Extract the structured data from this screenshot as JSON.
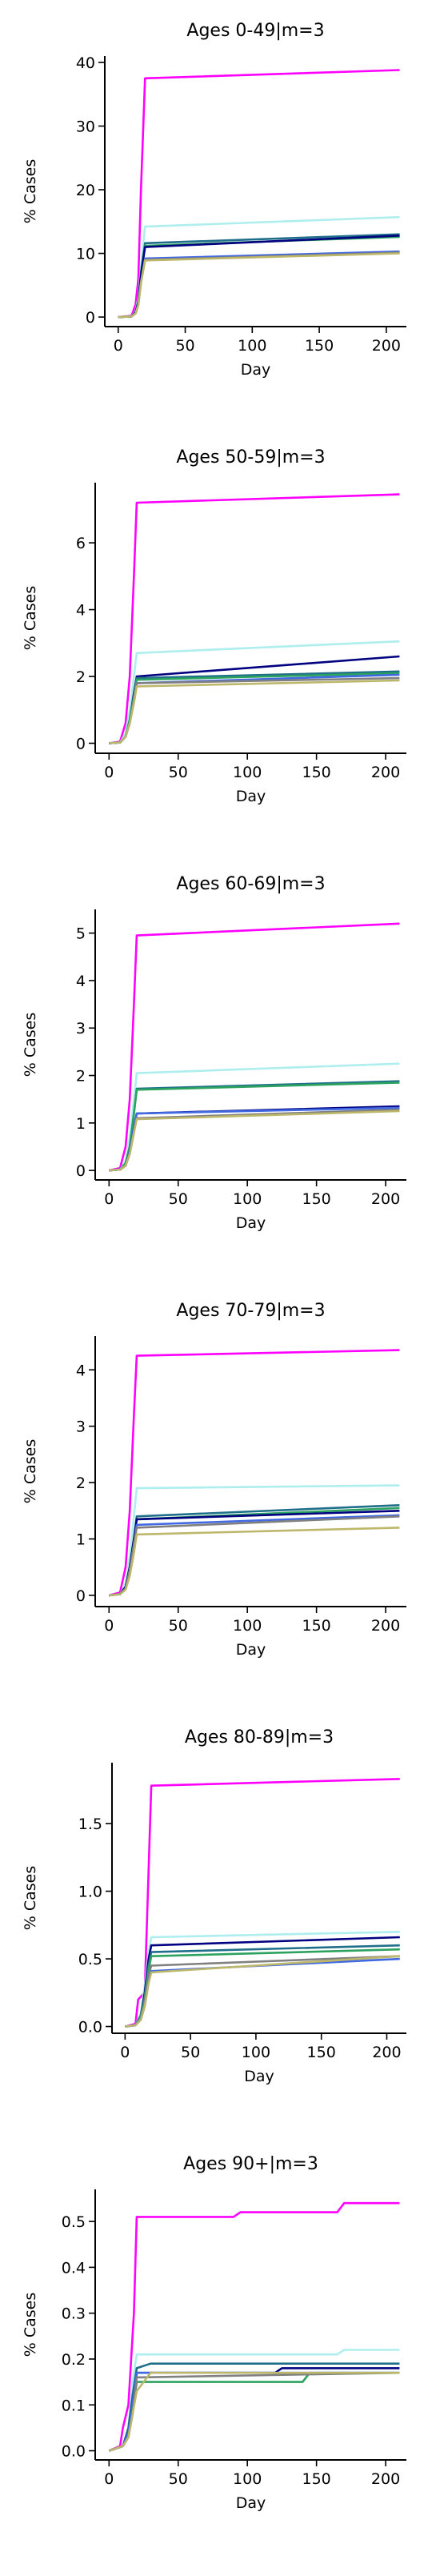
{
  "chart_data": [
    {
      "type": "line",
      "title": "Ages 0-49|m=3",
      "xlabel": "Day",
      "ylabel": "% Cases",
      "xlim": [
        -10,
        215
      ],
      "ylim": [
        -1.5,
        41
      ],
      "xticks": [
        0,
        50,
        100,
        150,
        200
      ],
      "yticks": [
        0,
        10,
        20,
        30,
        40
      ],
      "series": [
        {
          "color": "#ff00ff",
          "x": [
            0,
            10,
            13,
            15,
            17,
            20,
            210
          ],
          "y": [
            0,
            0.2,
            2,
            6,
            20,
            37.5,
            38.8
          ]
        },
        {
          "color": "#aeeeee",
          "x": [
            0,
            10,
            13,
            15,
            17,
            20,
            210
          ],
          "y": [
            0,
            0.1,
            1,
            3,
            8,
            14.2,
            15.7
          ]
        },
        {
          "color": "#1f6f8b",
          "x": [
            0,
            10,
            13,
            15,
            17,
            20,
            210
          ],
          "y": [
            0,
            0.1,
            0.8,
            2.5,
            7,
            11.6,
            13.0
          ]
        },
        {
          "color": "#2ca25f",
          "x": [
            0,
            10,
            13,
            15,
            17,
            20,
            210
          ],
          "y": [
            0,
            0.1,
            0.8,
            2.4,
            6.8,
            11.2,
            12.6
          ]
        },
        {
          "color": "#000080",
          "x": [
            0,
            10,
            13,
            15,
            17,
            20,
            210
          ],
          "y": [
            0,
            0.1,
            0.8,
            2.3,
            6.6,
            11.0,
            12.8
          ]
        },
        {
          "color": "#4169e1",
          "x": [
            0,
            10,
            13,
            15,
            17,
            20,
            210
          ],
          "y": [
            0,
            0.1,
            0.6,
            2.0,
            5.5,
            9.2,
            10.3
          ]
        },
        {
          "color": "#808080",
          "x": [
            0,
            10,
            13,
            15,
            17,
            20,
            210
          ],
          "y": [
            0,
            0.1,
            0.6,
            1.9,
            5.4,
            9.0,
            10.1
          ]
        },
        {
          "color": "#bdb76b",
          "x": [
            0,
            10,
            13,
            15,
            17,
            20,
            210
          ],
          "y": [
            0,
            0.1,
            0.6,
            1.9,
            5.3,
            8.9,
            10.0
          ]
        }
      ]
    },
    {
      "type": "line",
      "title": "Ages 50-59|m=3",
      "xlabel": "Day",
      "ylabel": "% Cases",
      "xlim": [
        -10,
        215
      ],
      "ylim": [
        -0.3,
        7.8
      ],
      "xticks": [
        0,
        50,
        100,
        150,
        200
      ],
      "yticks": [
        0,
        2,
        4,
        6
      ],
      "series": [
        {
          "color": "#ff00ff",
          "x": [
            0,
            8,
            12,
            15,
            18,
            20,
            210
          ],
          "y": [
            0,
            0.05,
            0.6,
            2.0,
            5.0,
            7.2,
            7.45
          ]
        },
        {
          "color": "#aeeeee",
          "x": [
            0,
            8,
            12,
            15,
            18,
            20,
            210
          ],
          "y": [
            0,
            0.02,
            0.3,
            1.0,
            2.0,
            2.7,
            3.05
          ]
        },
        {
          "color": "#000080",
          "x": [
            0,
            8,
            12,
            15,
            18,
            20,
            210
          ],
          "y": [
            0,
            0.02,
            0.2,
            0.7,
            1.5,
            2.0,
            2.6
          ]
        },
        {
          "color": "#1f6f8b",
          "x": [
            0,
            8,
            12,
            15,
            18,
            20,
            210
          ],
          "y": [
            0,
            0.02,
            0.2,
            0.7,
            1.4,
            1.95,
            2.15
          ]
        },
        {
          "color": "#2ca25f",
          "x": [
            0,
            8,
            12,
            15,
            18,
            20,
            210
          ],
          "y": [
            0,
            0.02,
            0.2,
            0.7,
            1.4,
            1.9,
            2.1
          ]
        },
        {
          "color": "#4169e1",
          "x": [
            0,
            8,
            12,
            15,
            18,
            20,
            210
          ],
          "y": [
            0,
            0.02,
            0.2,
            0.6,
            1.3,
            1.8,
            2.05
          ]
        },
        {
          "color": "#808080",
          "x": [
            0,
            8,
            12,
            15,
            18,
            20,
            210
          ],
          "y": [
            0,
            0.02,
            0.2,
            0.6,
            1.3,
            1.8,
            1.95
          ]
        },
        {
          "color": "#bdb76b",
          "x": [
            0,
            8,
            12,
            15,
            18,
            20,
            210
          ],
          "y": [
            0,
            0.02,
            0.2,
            0.6,
            1.2,
            1.7,
            1.88
          ]
        }
      ]
    },
    {
      "type": "line",
      "title": "Ages 60-69|m=3",
      "xlabel": "Day",
      "ylabel": "% Cases",
      "xlim": [
        -10,
        215
      ],
      "ylim": [
        -0.2,
        5.5
      ],
      "xticks": [
        0,
        50,
        100,
        150,
        200
      ],
      "yticks": [
        0,
        1,
        2,
        3,
        4,
        5
      ],
      "series": [
        {
          "color": "#ff00ff",
          "x": [
            0,
            8,
            12,
            15,
            18,
            20,
            210
          ],
          "y": [
            0,
            0.05,
            0.5,
            1.5,
            3.5,
            4.95,
            5.2
          ]
        },
        {
          "color": "#aeeeee",
          "x": [
            0,
            8,
            12,
            15,
            18,
            20,
            210
          ],
          "y": [
            0,
            0.02,
            0.2,
            0.7,
            1.5,
            2.05,
            2.25
          ]
        },
        {
          "color": "#1f6f8b",
          "x": [
            0,
            8,
            12,
            15,
            18,
            20,
            210
          ],
          "y": [
            0,
            0.02,
            0.15,
            0.5,
            1.2,
            1.72,
            1.88
          ]
        },
        {
          "color": "#2ca25f",
          "x": [
            0,
            8,
            12,
            15,
            18,
            20,
            210
          ],
          "y": [
            0,
            0.02,
            0.15,
            0.5,
            1.2,
            1.7,
            1.85
          ]
        },
        {
          "color": "#000080",
          "x": [
            0,
            8,
            12,
            15,
            18,
            20,
            210
          ],
          "y": [
            0,
            0.02,
            0.1,
            0.4,
            0.9,
            1.2,
            1.35
          ]
        },
        {
          "color": "#4169e1",
          "x": [
            0,
            8,
            12,
            15,
            18,
            20,
            210
          ],
          "y": [
            0,
            0.02,
            0.1,
            0.4,
            0.9,
            1.2,
            1.32
          ]
        },
        {
          "color": "#808080",
          "x": [
            0,
            8,
            12,
            15,
            18,
            20,
            210
          ],
          "y": [
            0,
            0.02,
            0.1,
            0.35,
            0.8,
            1.1,
            1.28
          ]
        },
        {
          "color": "#bdb76b",
          "x": [
            0,
            8,
            12,
            15,
            18,
            20,
            210
          ],
          "y": [
            0,
            0.02,
            0.1,
            0.35,
            0.8,
            1.08,
            1.25
          ]
        }
      ]
    },
    {
      "type": "line",
      "title": "Ages 70-79|m=3",
      "xlabel": "Day",
      "ylabel": "% Cases",
      "xlim": [
        -10,
        215
      ],
      "ylim": [
        -0.2,
        4.6
      ],
      "xticks": [
        0,
        50,
        100,
        150,
        200
      ],
      "yticks": [
        0,
        1,
        2,
        3,
        4
      ],
      "series": [
        {
          "color": "#ff00ff",
          "x": [
            0,
            8,
            12,
            15,
            18,
            20,
            210
          ],
          "y": [
            0,
            0.05,
            0.5,
            1.5,
            3.2,
            4.25,
            4.35
          ]
        },
        {
          "color": "#aeeeee",
          "x": [
            0,
            8,
            12,
            15,
            18,
            20,
            210
          ],
          "y": [
            0,
            0.02,
            0.2,
            0.7,
            1.4,
            1.9,
            1.95
          ]
        },
        {
          "color": "#1f6f8b",
          "x": [
            0,
            8,
            12,
            15,
            18,
            20,
            210
          ],
          "y": [
            0,
            0.02,
            0.15,
            0.5,
            1.0,
            1.4,
            1.6
          ]
        },
        {
          "color": "#2ca25f",
          "x": [
            0,
            8,
            12,
            15,
            18,
            20,
            210
          ],
          "y": [
            0,
            0.02,
            0.15,
            0.5,
            1.0,
            1.35,
            1.55
          ]
        },
        {
          "color": "#000080",
          "x": [
            0,
            8,
            12,
            15,
            18,
            20,
            210
          ],
          "y": [
            0,
            0.02,
            0.15,
            0.5,
            1.0,
            1.35,
            1.5
          ]
        },
        {
          "color": "#4169e1",
          "x": [
            0,
            8,
            12,
            15,
            18,
            20,
            210
          ],
          "y": [
            0,
            0.02,
            0.12,
            0.45,
            0.9,
            1.25,
            1.42
          ]
        },
        {
          "color": "#808080",
          "x": [
            0,
            8,
            12,
            15,
            18,
            20,
            210
          ],
          "y": [
            0,
            0.02,
            0.12,
            0.45,
            0.9,
            1.2,
            1.4
          ]
        },
        {
          "color": "#bdb76b",
          "x": [
            0,
            8,
            12,
            15,
            18,
            20,
            210
          ],
          "y": [
            0,
            0.02,
            0.1,
            0.35,
            0.75,
            1.08,
            1.2
          ]
        }
      ]
    },
    {
      "type": "line",
      "title": "Ages 80-89|m=3",
      "xlabel": "Day",
      "ylabel": "% Cases",
      "xlim": [
        -10,
        215
      ],
      "ylim": [
        -0.05,
        1.95
      ],
      "xticks": [
        0,
        50,
        100,
        150,
        200
      ],
      "yticks": [
        0.0,
        0.5,
        1.0,
        1.5
      ],
      "series": [
        {
          "color": "#ff00ff",
          "x": [
            0,
            8,
            10,
            15,
            20,
            210
          ],
          "y": [
            0,
            0.02,
            0.2,
            0.25,
            1.78,
            1.83
          ]
        },
        {
          "color": "#aeeeee",
          "x": [
            0,
            8,
            12,
            15,
            18,
            20,
            210
          ],
          "y": [
            0,
            0.01,
            0.1,
            0.3,
            0.55,
            0.66,
            0.7
          ]
        },
        {
          "color": "#000080",
          "x": [
            0,
            8,
            12,
            15,
            18,
            20,
            210
          ],
          "y": [
            0,
            0.01,
            0.08,
            0.25,
            0.5,
            0.6,
            0.66
          ]
        },
        {
          "color": "#1f6f8b",
          "x": [
            0,
            8,
            12,
            15,
            18,
            20,
            210
          ],
          "y": [
            0,
            0.01,
            0.08,
            0.22,
            0.45,
            0.55,
            0.6
          ]
        },
        {
          "color": "#2ca25f",
          "x": [
            0,
            8,
            12,
            15,
            18,
            20,
            210
          ],
          "y": [
            0,
            0.01,
            0.07,
            0.2,
            0.42,
            0.52,
            0.57
          ]
        },
        {
          "color": "#808080",
          "x": [
            0,
            8,
            12,
            15,
            18,
            20,
            210
          ],
          "y": [
            0,
            0.01,
            0.06,
            0.18,
            0.38,
            0.45,
            0.52
          ]
        },
        {
          "color": "#4169e1",
          "x": [
            0,
            8,
            12,
            15,
            18,
            20,
            210
          ],
          "y": [
            0,
            0.01,
            0.05,
            0.15,
            0.33,
            0.41,
            0.5
          ]
        },
        {
          "color": "#bdb76b",
          "x": [
            0,
            8,
            12,
            15,
            18,
            20,
            210
          ],
          "y": [
            0,
            0.01,
            0.05,
            0.15,
            0.32,
            0.4,
            0.52
          ]
        }
      ]
    },
    {
      "type": "line",
      "title": "Ages 90+|m=3",
      "xlabel": "Day",
      "ylabel": "% Cases",
      "xlim": [
        -10,
        215
      ],
      "ylim": [
        -0.02,
        0.57
      ],
      "xticks": [
        0,
        50,
        100,
        150,
        200
      ],
      "yticks": [
        0.0,
        0.1,
        0.2,
        0.3,
        0.4,
        0.5
      ],
      "series": [
        {
          "color": "#ff00ff",
          "x": [
            0,
            8,
            10,
            14,
            18,
            20,
            90,
            95,
            165,
            170,
            210
          ],
          "y": [
            0,
            0.01,
            0.05,
            0.1,
            0.3,
            0.51,
            0.51,
            0.52,
            0.52,
            0.54,
            0.54
          ]
        },
        {
          "color": "#aeeeee",
          "x": [
            0,
            10,
            14,
            17,
            20,
            165,
            170,
            210
          ],
          "y": [
            0,
            0.01,
            0.05,
            0.15,
            0.21,
            0.21,
            0.22,
            0.22
          ]
        },
        {
          "color": "#1f6f8b",
          "x": [
            0,
            10,
            14,
            17,
            20,
            30,
            210
          ],
          "y": [
            0,
            0.01,
            0.05,
            0.12,
            0.18,
            0.19,
            0.19
          ]
        },
        {
          "color": "#000080",
          "x": [
            0,
            10,
            14,
            17,
            20,
            120,
            125,
            210
          ],
          "y": [
            0,
            0.01,
            0.04,
            0.1,
            0.17,
            0.17,
            0.18,
            0.18
          ]
        },
        {
          "color": "#4169e1",
          "x": [
            0,
            10,
            14,
            17,
            20,
            210
          ],
          "y": [
            0,
            0.01,
            0.04,
            0.1,
            0.17,
            0.17
          ]
        },
        {
          "color": "#2ca25f",
          "x": [
            0,
            10,
            14,
            17,
            20,
            140,
            145,
            210
          ],
          "y": [
            0,
            0.01,
            0.03,
            0.08,
            0.15,
            0.15,
            0.17,
            0.17
          ]
        },
        {
          "color": "#808080",
          "x": [
            0,
            10,
            14,
            17,
            20,
            210
          ],
          "y": [
            0,
            0.01,
            0.03,
            0.08,
            0.16,
            0.17
          ]
        },
        {
          "color": "#bdb76b",
          "x": [
            0,
            10,
            14,
            17,
            20,
            30,
            210
          ],
          "y": [
            0,
            0.01,
            0.03,
            0.08,
            0.13,
            0.17,
            0.17
          ]
        }
      ]
    }
  ]
}
